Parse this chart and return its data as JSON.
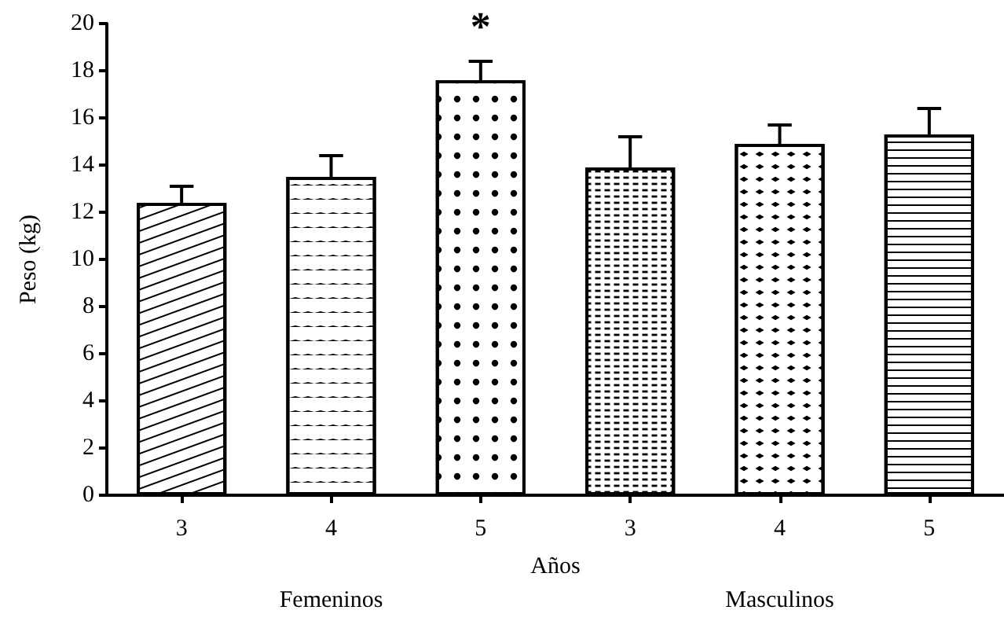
{
  "chart_data": {
    "type": "bar",
    "xlabel": "Años",
    "ylabel": "Peso (kg)",
    "categories": [
      "3",
      "4",
      "5",
      "3",
      "4",
      "5"
    ],
    "values": [
      12.4,
      13.5,
      17.6,
      13.9,
      14.9,
      15.3
    ],
    "errors": [
      [
        12.4,
        13.1
      ],
      [
        13.5,
        14.4
      ],
      [
        17.6,
        18.4
      ],
      [
        13.9,
        15.2
      ],
      [
        14.9,
        15.7
      ],
      [
        15.3,
        16.4
      ]
    ],
    "colors": [
      "#ffffff",
      "#ffffff",
      "#ffffff",
      "#ffffff",
      "#ffffff",
      "#ffffff"
    ],
    "ylim": [
      0,
      20
    ],
    "yticks": [
      0,
      2,
      4,
      6,
      8,
      10,
      12,
      14,
      16,
      18,
      20
    ],
    "grid": false,
    "annotations": [
      "*",
      "Femeninos",
      "Masculinos"
    ]
  }
}
